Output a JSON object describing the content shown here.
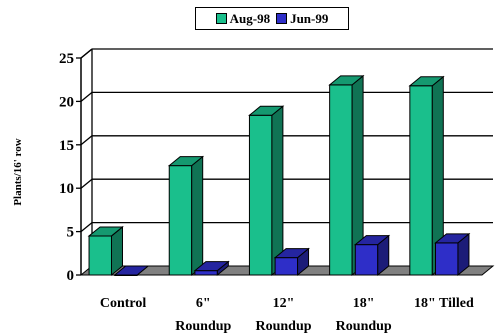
{
  "chart_data": {
    "type": "bar",
    "categories": [
      {
        "line1": "Control",
        "line2": ""
      },
      {
        "line1": "6\"",
        "line2": "Roundup"
      },
      {
        "line1": "12\"",
        "line2": "Roundup"
      },
      {
        "line1": "18\"",
        "line2": "Roundup"
      },
      {
        "line1": "18\" Tilled",
        "line2": ""
      }
    ],
    "series": [
      {
        "name": "Aug-98",
        "color": "#1ABF8C",
        "values": [
          4.5,
          12.6,
          18.4,
          21.9,
          21.8
        ]
      },
      {
        "name": "Jun-99",
        "color": "#2E2EC8",
        "values": [
          0,
          0.5,
          2,
          3.5,
          3.7
        ]
      }
    ],
    "ylabel": "Plants/16' row",
    "xlabel": "",
    "ylim": [
      0,
      25
    ],
    "yticks": [
      0,
      5,
      10,
      15,
      20,
      25
    ],
    "grid": true,
    "legend_position": "top-center",
    "style": "3d-bar"
  }
}
